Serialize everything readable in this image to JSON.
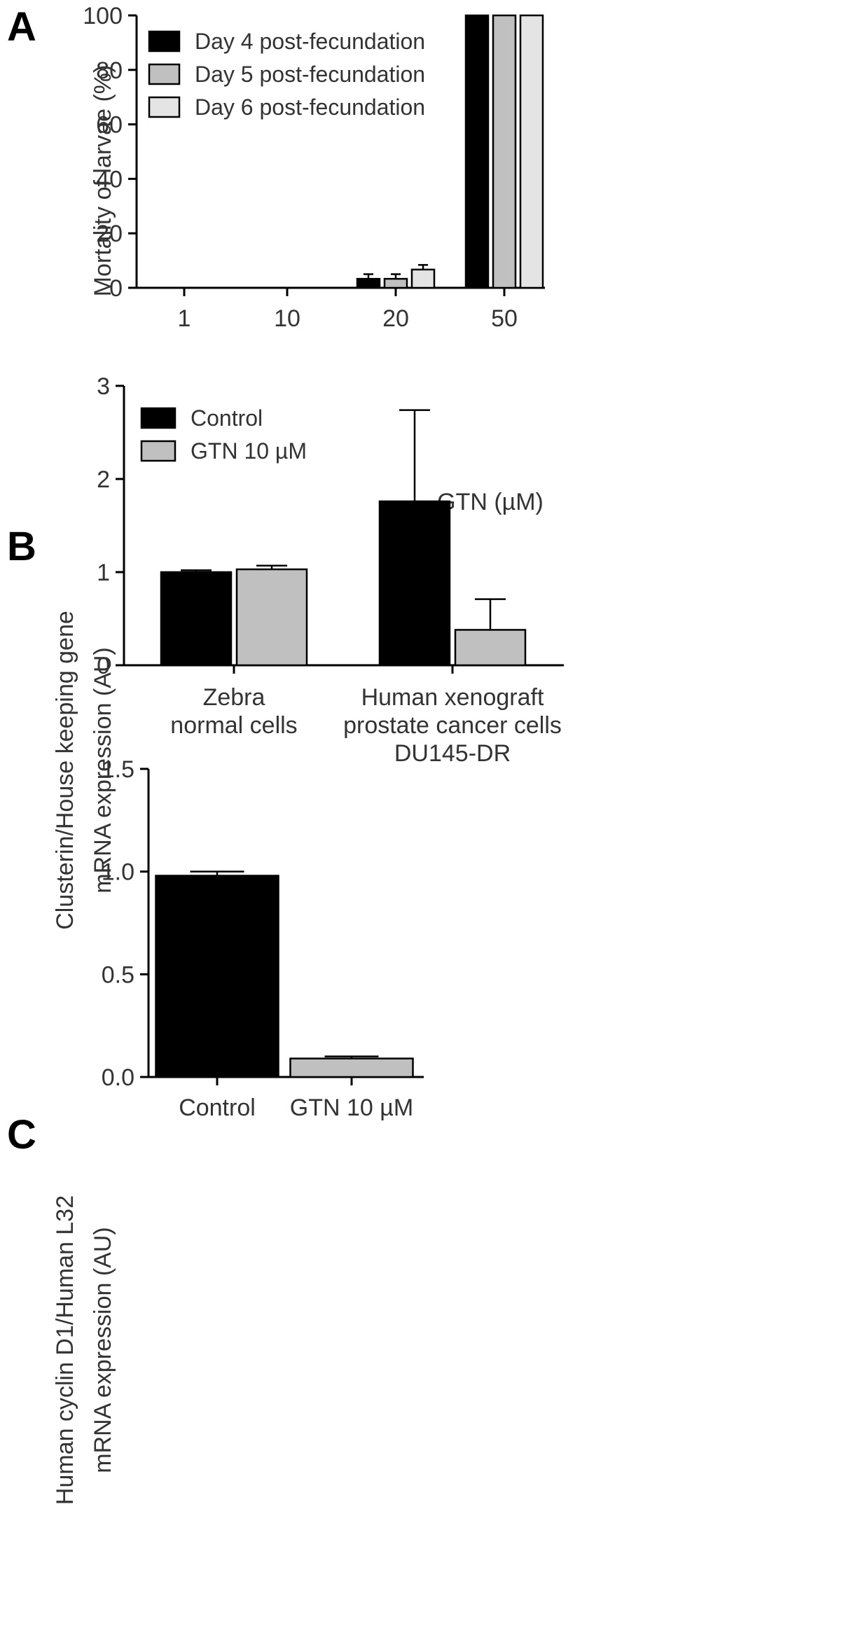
{
  "colors": {
    "black": "#000000",
    "mid_gray": "#c0c0c0",
    "light_gray": "#e4e4e4",
    "stroke": "#000000",
    "text": "#333333"
  },
  "chart_data": [
    {
      "panel": "A",
      "type": "bar",
      "xlabel": "GTN (µM)",
      "ylabel": "Mortality of larvae (%)",
      "ylim": [
        0,
        100
      ],
      "yticks": [
        "0",
        "20",
        "40",
        "60",
        "80",
        "100"
      ],
      "categories": [
        "1",
        "10",
        "20",
        "50"
      ],
      "legend_position": "top-left",
      "series": [
        {
          "name": "Day 4 post-fecundation",
          "values": [
            0,
            0,
            3.3,
            100
          ],
          "errors": [
            0,
            0,
            1.7,
            0
          ]
        },
        {
          "name": "Day 5 post-fecundation",
          "values": [
            0,
            0,
            3.3,
            100
          ],
          "errors": [
            0,
            0,
            1.7,
            0
          ]
        },
        {
          "name": "Day 6 post-fecundation",
          "values": [
            0,
            0,
            6.7,
            100
          ],
          "errors": [
            0,
            0,
            1.7,
            0
          ]
        }
      ]
    },
    {
      "panel": "B",
      "type": "bar",
      "xlabel": "",
      "ylabel": [
        "Clusterin/House keeping gene",
        "mRNA expression (AU)"
      ],
      "ylim": [
        0,
        3
      ],
      "yticks": [
        "0",
        "1",
        "2",
        "3"
      ],
      "categories": [
        [
          "Zebra",
          "normal cells"
        ],
        [
          "Human xenograft",
          "prostate cancer cells",
          "DU145-DR"
        ]
      ],
      "legend_position": "top-left",
      "series": [
        {
          "name": "Control",
          "values": [
            1.0,
            1.76
          ],
          "errors": [
            0.02,
            0.98
          ]
        },
        {
          "name": "GTN 10 µM",
          "values": [
            1.03,
            0.38
          ],
          "errors": [
            0.04,
            0.33
          ]
        }
      ]
    },
    {
      "panel": "C",
      "type": "bar",
      "xlabel": "",
      "ylabel": [
        "Human cyclin D1/Human L32",
        "mRNA  expression (AU)"
      ],
      "ylim": [
        0,
        1.5
      ],
      "yticks": [
        "0.0",
        "0.5",
        "1.0",
        "1.5"
      ],
      "categories": [
        "Control",
        "GTN 10 µM"
      ],
      "values": [
        0.98,
        0.09
      ],
      "errors": [
        0.02,
        0.01
      ]
    }
  ]
}
